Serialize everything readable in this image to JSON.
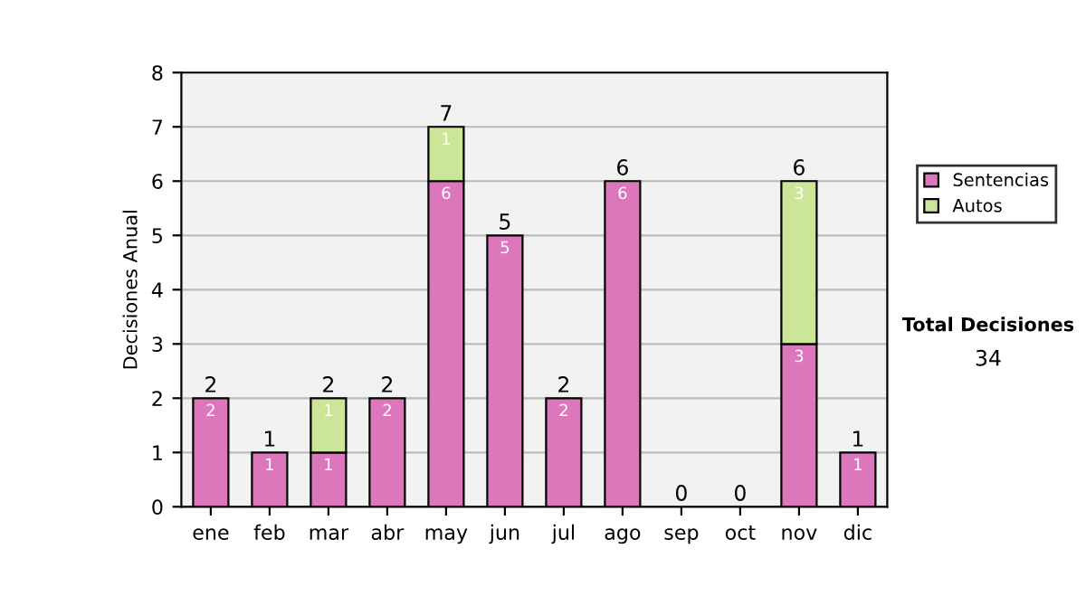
{
  "chart_data": {
    "type": "bar",
    "stacked": true,
    "ylabel": "Decisiones Anual",
    "categories": [
      "ene",
      "feb",
      "mar",
      "abr",
      "may",
      "jun",
      "jul",
      "ago",
      "sep",
      "oct",
      "nov",
      "dic"
    ],
    "series": [
      {
        "name": "Sentencias",
        "color": "#dd77bb",
        "values": [
          2,
          1,
          1,
          2,
          6,
          5,
          2,
          6,
          0,
          0,
          3,
          1
        ],
        "value_labels": [
          "2",
          "1",
          "1",
          "2",
          "6",
          "5",
          "2",
          "6",
          null,
          null,
          "3",
          "1"
        ]
      },
      {
        "name": "Autos",
        "color": "#cce699",
        "values": [
          0,
          0,
          1,
          0,
          1,
          0,
          0,
          0,
          0,
          0,
          3,
          0
        ],
        "value_labels": [
          null,
          null,
          "1",
          null,
          "1",
          null,
          null,
          null,
          null,
          null,
          "3",
          null
        ]
      }
    ],
    "totals": [
      "2",
      "1",
      "2",
      "2",
      "7",
      "5",
      "2",
      "6",
      "0",
      "0",
      "6",
      "1"
    ],
    "ylim": [
      0,
      8
    ],
    "yticks": [
      0,
      1,
      2,
      3,
      4,
      5,
      6,
      7,
      8
    ],
    "grid": "y",
    "legend": "right",
    "annotations": [
      "Total Decisiones",
      "34"
    ]
  }
}
